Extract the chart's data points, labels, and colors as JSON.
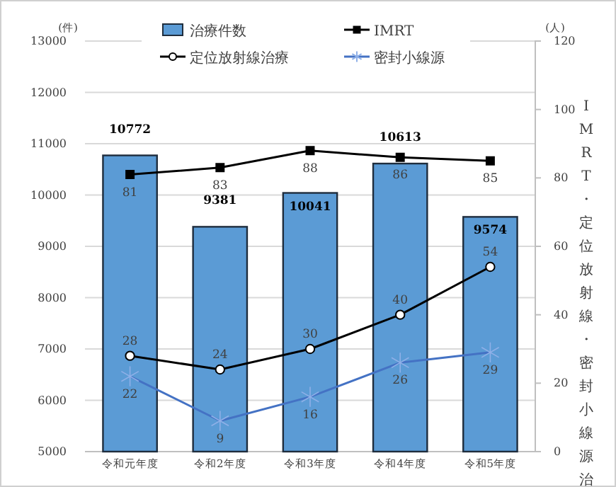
{
  "chart_data": {
    "type": "bar",
    "categories": [
      "令和元年度",
      "令和2年度",
      "令和3年度",
      "令和4年度",
      "令和5年度"
    ],
    "ylabel": "(件)",
    "y2label": "IMRT・定位放射線・密封小線源治療",
    "annotations": [
      "(人)"
    ],
    "series": [
      {
        "name": "治療件数",
        "color": "#5b9bd5",
        "values": [
          10772,
          9381,
          10041,
          10613,
          9574
        ]
      },
      {
        "name": "IMRT",
        "type": "line",
        "axis": "y2",
        "color": "#000000",
        "marker": "square",
        "values": [
          81,
          83,
          88,
          86,
          85
        ]
      },
      {
        "name": "定位放射線治療",
        "type": "line",
        "axis": "y2",
        "color": "#000000",
        "marker": "circle",
        "values": [
          28,
          24,
          30,
          40,
          54
        ]
      },
      {
        "name": "密封小線源",
        "type": "line",
        "axis": "y2",
        "color": "#4472c4",
        "marker": "cross",
        "values": [
          22,
          9,
          16,
          26,
          29
        ]
      }
    ],
    "ylim": [
      5000,
      13000
    ],
    "yticks": [
      5000,
      6000,
      7000,
      8000,
      9000,
      10000,
      11000,
      12000,
      13000
    ],
    "y2lim": [
      0,
      120
    ],
    "y2ticks": [
      0,
      20,
      40,
      60,
      80,
      100,
      120
    ],
    "grid": "y",
    "legend": "top",
    "data_labels": true
  }
}
